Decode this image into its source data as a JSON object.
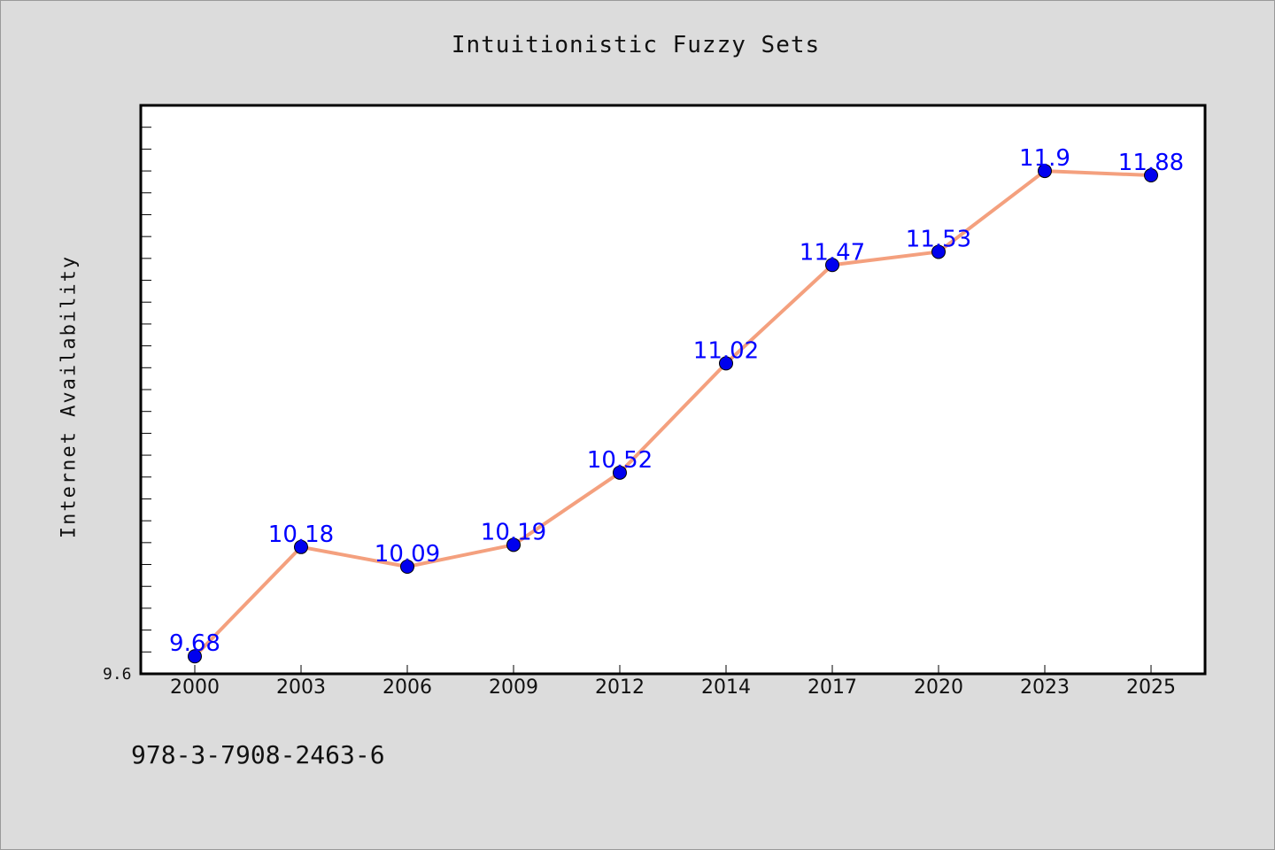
{
  "chart_data": {
    "type": "line",
    "title": "Intuitionistic Fuzzy Sets",
    "xlabel": "",
    "ylabel": "Internet Availability",
    "categories": [
      "2000",
      "2003",
      "2006",
      "2009",
      "2012",
      "2014",
      "2017",
      "2020",
      "2023",
      "2025"
    ],
    "series": [
      {
        "values": [
          9.68,
          10.18,
          10.09,
          10.19,
          10.52,
          11.02,
          11.47,
          11.53,
          11.9,
          11.88
        ],
        "labels": [
          "9.68",
          "10.18",
          "10.09",
          "10.19",
          "10.52",
          "11.02",
          "11.47",
          "11.53",
          "11.9",
          "11.88"
        ],
        "line_color": "#f4a07e",
        "marker_color": "#0000ee"
      }
    ],
    "ylim": [
      9.6,
      12.2
    ],
    "y_min_label": "9.6",
    "grid": false,
    "legend": "none"
  },
  "footer": {
    "text": "978-3-7908-2463-6"
  },
  "colors": {
    "background": "#dcdcdc",
    "plot_background": "#ffffff",
    "label_color": "#0000ff"
  }
}
